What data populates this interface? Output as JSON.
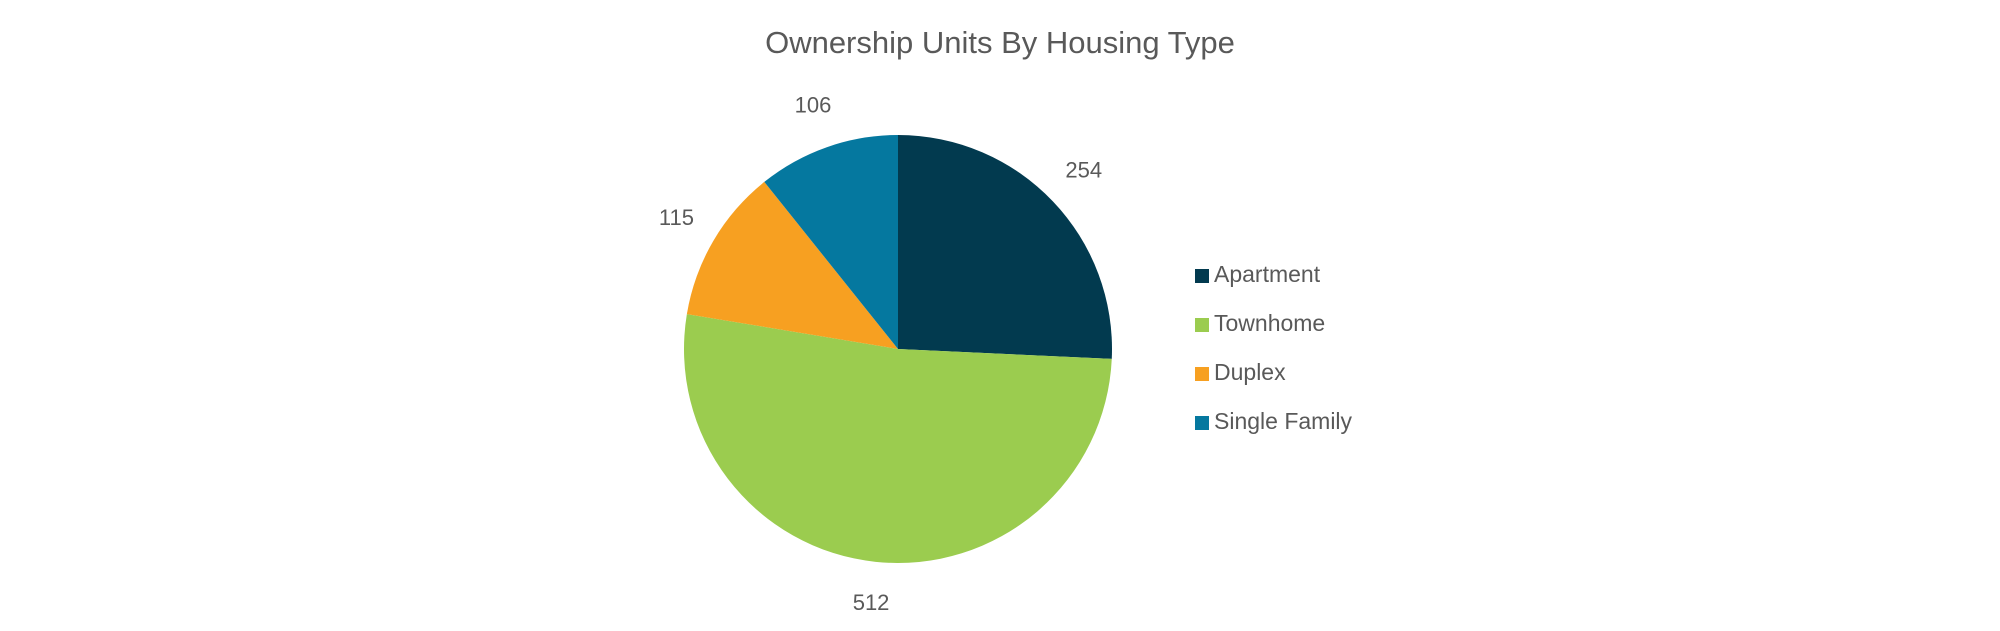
{
  "chart_data": {
    "type": "pie",
    "title": "Ownership Units By Housing Type",
    "categories": [
      "Apartment",
      "Townhome",
      "Duplex",
      "Single Family"
    ],
    "values": [
      254,
      512,
      115,
      106
    ],
    "colors": [
      "#023a4f",
      "#9bcc4f",
      "#f7a021",
      "#05789f"
    ],
    "legend": "right"
  }
}
